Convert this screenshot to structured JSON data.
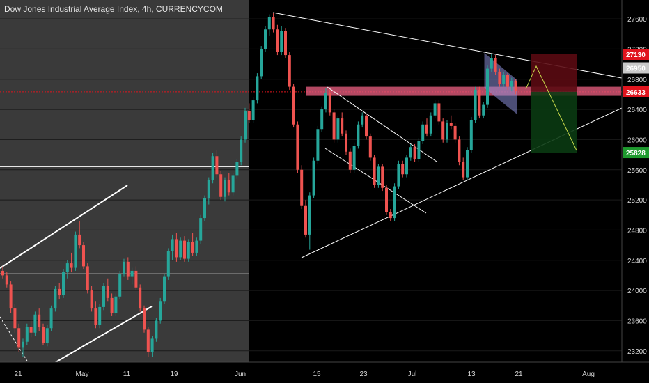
{
  "chart_title": "Dow Jones Industrial Average Index, 4h, CURRENCYCOM",
  "chart_data": {
    "type": "candlestick",
    "title": "Dow Jones Industrial Average Index, 4h, CURRENCYCOM",
    "y_ticks": [
      27600,
      27200,
      26800,
      26400,
      26000,
      25600,
      25200,
      24800,
      24400,
      24000,
      23600,
      23200
    ],
    "ylim": [
      23050,
      27850
    ],
    "x_labels": [
      "21",
      "May",
      "11",
      "19",
      "Jun",
      "15",
      "23",
      "Jul",
      "13",
      "21",
      "Aug"
    ],
    "price_tags": [
      {
        "value": 27130,
        "label": "27130",
        "color": "#e0141e"
      },
      {
        "value": 26950,
        "label": "26950",
        "color": "#c8c8c8"
      },
      {
        "value": 26633,
        "label": "26633",
        "color": "#e0141e"
      },
      {
        "value": 25828,
        "label": "25828",
        "color": "#1e9a2e"
      }
    ],
    "candles": [
      [
        24260,
        24320,
        24160,
        24200
      ],
      [
        24200,
        24240,
        24040,
        24080
      ],
      [
        24080,
        24120,
        23700,
        23760
      ],
      [
        23760,
        23820,
        23440,
        23500
      ],
      [
        23500,
        23560,
        23180,
        23240
      ],
      [
        23240,
        23360,
        23120,
        23320
      ],
      [
        23320,
        23560,
        23280,
        23520
      ],
      [
        23520,
        23600,
        23380,
        23440
      ],
      [
        23440,
        23720,
        23400,
        23680
      ],
      [
        23680,
        23760,
        23460,
        23520
      ],
      [
        23520,
        23560,
        23280,
        23300
      ],
      [
        23300,
        23540,
        23260,
        23500
      ],
      [
        23500,
        23800,
        23460,
        23760
      ],
      [
        23760,
        24060,
        23720,
        24020
      ],
      [
        24020,
        24100,
        23880,
        23940
      ],
      [
        23940,
        24280,
        23900,
        24240
      ],
      [
        24240,
        24400,
        24160,
        24360
      ],
      [
        24360,
        24500,
        24240,
        24300
      ],
      [
        24300,
        24780,
        24260,
        24740
      ],
      [
        24740,
        24920,
        24560,
        24600
      ],
      [
        24600,
        24640,
        24280,
        24320
      ],
      [
        24320,
        24360,
        23960,
        24000
      ],
      [
        24000,
        24060,
        23720,
        23760
      ],
      [
        23760,
        23860,
        23500,
        23540
      ],
      [
        23540,
        23820,
        23500,
        23780
      ],
      [
        23780,
        24100,
        23740,
        24060
      ],
      [
        24060,
        24160,
        23860,
        23900
      ],
      [
        23900,
        23960,
        23660,
        23700
      ],
      [
        23700,
        23960,
        23660,
        23920
      ],
      [
        23920,
        24260,
        23880,
        24220
      ],
      [
        24220,
        24420,
        24180,
        24380
      ],
      [
        24380,
        24440,
        24140,
        24180
      ],
      [
        24180,
        24300,
        24080,
        24260
      ],
      [
        24260,
        24320,
        24000,
        24040
      ],
      [
        24040,
        24080,
        23720,
        23760
      ],
      [
        23760,
        23800,
        23440,
        23480
      ],
      [
        23480,
        23520,
        23120,
        23180
      ],
      [
        23180,
        23400,
        23120,
        23360
      ],
      [
        23360,
        23640,
        23320,
        23600
      ],
      [
        23600,
        23900,
        23560,
        23860
      ],
      [
        23860,
        24220,
        23820,
        24180
      ],
      [
        24180,
        24560,
        24140,
        24520
      ],
      [
        24520,
        24740,
        24400,
        24680
      ],
      [
        24680,
        24760,
        24380,
        24440
      ],
      [
        24440,
        24700,
        24400,
        24660
      ],
      [
        24660,
        24720,
        24380,
        24420
      ],
      [
        24420,
        24680,
        24380,
        24640
      ],
      [
        24640,
        24760,
        24460,
        24500
      ],
      [
        24500,
        24700,
        24460,
        24660
      ],
      [
        24660,
        25000,
        24620,
        24960
      ],
      [
        24960,
        25260,
        24920,
        25220
      ],
      [
        25220,
        25500,
        25140,
        25460
      ],
      [
        25460,
        25820,
        25420,
        25780
      ],
      [
        25780,
        25860,
        25500,
        25540
      ],
      [
        25540,
        25580,
        25200,
        25240
      ],
      [
        25240,
        25500,
        25180,
        25460
      ],
      [
        25460,
        25560,
        25260,
        25300
      ],
      [
        25300,
        25560,
        25260,
        25520
      ],
      [
        25520,
        25740,
        25480,
        25700
      ],
      [
        25700,
        26040,
        25660,
        26000
      ],
      [
        26000,
        26420,
        25960,
        26380
      ],
      [
        26380,
        26480,
        26220,
        26260
      ],
      [
        26260,
        26560,
        26220,
        26520
      ],
      [
        26520,
        26880,
        26480,
        26840
      ],
      [
        26840,
        27240,
        26800,
        27200
      ],
      [
        27200,
        27500,
        27160,
        27460
      ],
      [
        27460,
        27660,
        27380,
        27620
      ],
      [
        27620,
        27680,
        27420,
        27460
      ],
      [
        27460,
        27520,
        27120,
        27160
      ],
      [
        27160,
        27500,
        27120,
        27440
      ],
      [
        27440,
        27480,
        27080,
        27120
      ],
      [
        27120,
        27160,
        26660,
        26700
      ],
      [
        26700,
        26740,
        26160,
        26200
      ],
      [
        26200,
        26240,
        25560,
        25600
      ],
      [
        25600,
        25660,
        25080,
        25120
      ],
      [
        25120,
        25200,
        24700,
        24740
      ],
      [
        24740,
        25300,
        24540,
        25260
      ],
      [
        25260,
        25760,
        25220,
        25720
      ],
      [
        25720,
        26180,
        25680,
        26140
      ],
      [
        26140,
        26440,
        26100,
        26400
      ],
      [
        26400,
        26680,
        26360,
        26620
      ],
      [
        26620,
        26660,
        26320,
        26360
      ],
      [
        26360,
        26400,
        25960,
        26000
      ],
      [
        26000,
        26320,
        25960,
        26280
      ],
      [
        26280,
        26360,
        26040,
        26080
      ],
      [
        26080,
        26120,
        25800,
        25840
      ],
      [
        25840,
        25880,
        25560,
        25600
      ],
      [
        25600,
        25960,
        25560,
        25920
      ],
      [
        25920,
        26240,
        25880,
        26200
      ],
      [
        26200,
        26360,
        26160,
        26320
      ],
      [
        26320,
        26340,
        26000,
        26040
      ],
      [
        26040,
        26080,
        25720,
        25760
      ],
      [
        25760,
        25800,
        25360,
        25400
      ],
      [
        25400,
        25680,
        25360,
        25640
      ],
      [
        25640,
        25680,
        25320,
        25360
      ],
      [
        25360,
        25400,
        25000,
        25040
      ],
      [
        25040,
        25080,
        24920,
        24960
      ],
      [
        24960,
        25420,
        24920,
        25380
      ],
      [
        25380,
        25720,
        25340,
        25680
      ],
      [
        25680,
        25720,
        25500,
        25540
      ],
      [
        25540,
        25800,
        25500,
        25760
      ],
      [
        25760,
        25940,
        25720,
        25900
      ],
      [
        25900,
        25940,
        25700,
        25740
      ],
      [
        25740,
        26020,
        25700,
        25980
      ],
      [
        25980,
        26240,
        25940,
        26200
      ],
      [
        26200,
        26280,
        26040,
        26080
      ],
      [
        26080,
        26360,
        26040,
        26320
      ],
      [
        26320,
        26520,
        26280,
        26480
      ],
      [
        26480,
        26520,
        26200,
        26240
      ],
      [
        26240,
        26280,
        25960,
        26000
      ],
      [
        26000,
        26260,
        25960,
        26220
      ],
      [
        26220,
        26320,
        26140,
        26180
      ],
      [
        26180,
        26220,
        25960,
        26000
      ],
      [
        26000,
        26040,
        25660,
        25700
      ],
      [
        25700,
        25760,
        25460,
        25500
      ],
      [
        25500,
        25900,
        25460,
        25860
      ],
      [
        25860,
        26300,
        25820,
        26260
      ],
      [
        26260,
        26700,
        26220,
        26660
      ],
      [
        26660,
        26700,
        26280,
        26320
      ],
      [
        26320,
        26500,
        26280,
        26460
      ],
      [
        26460,
        26980,
        26420,
        26940
      ],
      [
        26940,
        27130,
        26900,
        27080
      ],
      [
        27080,
        27120,
        26860,
        26900
      ],
      [
        26900,
        26940,
        26700,
        26740
      ],
      [
        26740,
        26900,
        26700,
        26860
      ],
      [
        26860,
        26880,
        26660,
        26700
      ],
      [
        26700,
        26820,
        26640,
        26780
      ],
      [
        26780,
        26800,
        26600,
        26640
      ]
    ],
    "series": [
      {
        "lines": [
          {
            "x1": 0,
            "y1": 25640,
            "x2": 358,
            "y2": 25640
          },
          {
            "x1": 0,
            "y1": 24220,
            "x2": 358,
            "y2": 24220
          }
        ]
      }
    ]
  }
}
